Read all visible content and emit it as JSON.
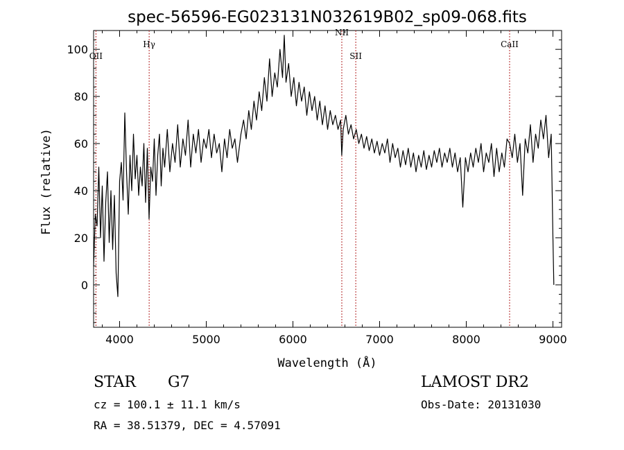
{
  "chart_data": {
    "type": "line",
    "title": "spec-56596-EG023131N032619B02_sp09-068.fits",
    "xlabel": "Wavelength (Å)",
    "ylabel": "Flux (relative)",
    "xlim": [
      3700,
      9100
    ],
    "ylim": [
      -18,
      108
    ],
    "x_ticks": [
      4000,
      5000,
      6000,
      7000,
      8000,
      9000
    ],
    "y_ticks": [
      0,
      20,
      40,
      60,
      80,
      100
    ],
    "grid": false,
    "series": [
      {
        "points": [
          [
            3700,
            8
          ],
          [
            3720,
            30
          ],
          [
            3740,
            25
          ],
          [
            3760,
            50
          ],
          [
            3780,
            20
          ],
          [
            3800,
            42
          ],
          [
            3820,
            10
          ],
          [
            3840,
            35
          ],
          [
            3860,
            48
          ],
          [
            3880,
            18
          ],
          [
            3900,
            40
          ],
          [
            3920,
            15
          ],
          [
            3940,
            38
          ],
          [
            3960,
            5
          ],
          [
            3980,
            -5
          ],
          [
            4000,
            44
          ],
          [
            4020,
            52
          ],
          [
            4040,
            36
          ],
          [
            4060,
            73
          ],
          [
            4080,
            48
          ],
          [
            4100,
            30
          ],
          [
            4120,
            55
          ],
          [
            4140,
            40
          ],
          [
            4160,
            64
          ],
          [
            4180,
            45
          ],
          [
            4200,
            55
          ],
          [
            4220,
            38
          ],
          [
            4240,
            50
          ],
          [
            4260,
            42
          ],
          [
            4280,
            60
          ],
          [
            4300,
            35
          ],
          [
            4320,
            58
          ],
          [
            4340,
            28
          ],
          [
            4360,
            50
          ],
          [
            4380,
            44
          ],
          [
            4400,
            62
          ],
          [
            4420,
            38
          ],
          [
            4440,
            55
          ],
          [
            4460,
            64
          ],
          [
            4480,
            42
          ],
          [
            4500,
            58
          ],
          [
            4520,
            50
          ],
          [
            4550,
            66
          ],
          [
            4580,
            48
          ],
          [
            4610,
            60
          ],
          [
            4640,
            52
          ],
          [
            4670,
            68
          ],
          [
            4700,
            50
          ],
          [
            4730,
            62
          ],
          [
            4760,
            55
          ],
          [
            4790,
            70
          ],
          [
            4820,
            50
          ],
          [
            4850,
            64
          ],
          [
            4880,
            56
          ],
          [
            4910,
            66
          ],
          [
            4940,
            52
          ],
          [
            4970,
            62
          ],
          [
            5000,
            58
          ],
          [
            5030,
            66
          ],
          [
            5060,
            54
          ],
          [
            5090,
            64
          ],
          [
            5120,
            56
          ],
          [
            5150,
            60
          ],
          [
            5180,
            48
          ],
          [
            5210,
            62
          ],
          [
            5240,
            54
          ],
          [
            5270,
            66
          ],
          [
            5300,
            58
          ],
          [
            5330,
            62
          ],
          [
            5360,
            52
          ],
          [
            5400,
            64
          ],
          [
            5430,
            70
          ],
          [
            5460,
            62
          ],
          [
            5490,
            74
          ],
          [
            5520,
            66
          ],
          [
            5550,
            78
          ],
          [
            5580,
            70
          ],
          [
            5610,
            82
          ],
          [
            5640,
            74
          ],
          [
            5670,
            88
          ],
          [
            5700,
            78
          ],
          [
            5730,
            96
          ],
          [
            5760,
            80
          ],
          [
            5790,
            90
          ],
          [
            5820,
            84
          ],
          [
            5850,
            100
          ],
          [
            5880,
            88
          ],
          [
            5900,
            106
          ],
          [
            5920,
            86
          ],
          [
            5950,
            94
          ],
          [
            5980,
            80
          ],
          [
            6010,
            88
          ],
          [
            6040,
            76
          ],
          [
            6070,
            86
          ],
          [
            6100,
            78
          ],
          [
            6130,
            84
          ],
          [
            6160,
            72
          ],
          [
            6190,
            82
          ],
          [
            6220,
            74
          ],
          [
            6250,
            80
          ],
          [
            6280,
            70
          ],
          [
            6310,
            78
          ],
          [
            6340,
            68
          ],
          [
            6370,
            76
          ],
          [
            6400,
            66
          ],
          [
            6430,
            74
          ],
          [
            6460,
            68
          ],
          [
            6490,
            72
          ],
          [
            6520,
            66
          ],
          [
            6550,
            70
          ],
          [
            6563,
            55
          ],
          [
            6580,
            66
          ],
          [
            6610,
            72
          ],
          [
            6640,
            64
          ],
          [
            6670,
            68
          ],
          [
            6700,
            62
          ],
          [
            6730,
            66
          ],
          [
            6760,
            60
          ],
          [
            6790,
            64
          ],
          [
            6820,
            58
          ],
          [
            6850,
            63
          ],
          [
            6880,
            57
          ],
          [
            6910,
            62
          ],
          [
            6940,
            56
          ],
          [
            6970,
            61
          ],
          [
            7000,
            55
          ],
          [
            7030,
            60
          ],
          [
            7060,
            56
          ],
          [
            7090,
            62
          ],
          [
            7120,
            52
          ],
          [
            7150,
            60
          ],
          [
            7180,
            54
          ],
          [
            7210,
            58
          ],
          [
            7240,
            50
          ],
          [
            7270,
            57
          ],
          [
            7300,
            51
          ],
          [
            7330,
            58
          ],
          [
            7360,
            50
          ],
          [
            7390,
            56
          ],
          [
            7420,
            48
          ],
          [
            7450,
            55
          ],
          [
            7480,
            50
          ],
          [
            7510,
            57
          ],
          [
            7540,
            49
          ],
          [
            7570,
            55
          ],
          [
            7600,
            50
          ],
          [
            7630,
            57
          ],
          [
            7660,
            52
          ],
          [
            7690,
            58
          ],
          [
            7720,
            50
          ],
          [
            7750,
            56
          ],
          [
            7780,
            52
          ],
          [
            7810,
            58
          ],
          [
            7840,
            50
          ],
          [
            7870,
            56
          ],
          [
            7900,
            48
          ],
          [
            7930,
            54
          ],
          [
            7960,
            33
          ],
          [
            7990,
            54
          ],
          [
            8020,
            48
          ],
          [
            8050,
            56
          ],
          [
            8080,
            50
          ],
          [
            8110,
            58
          ],
          [
            8140,
            52
          ],
          [
            8170,
            60
          ],
          [
            8200,
            48
          ],
          [
            8230,
            56
          ],
          [
            8260,
            52
          ],
          [
            8290,
            60
          ],
          [
            8320,
            46
          ],
          [
            8350,
            58
          ],
          [
            8380,
            48
          ],
          [
            8410,
            56
          ],
          [
            8440,
            50
          ],
          [
            8470,
            62
          ],
          [
            8500,
            60
          ],
          [
            8530,
            54
          ],
          [
            8560,
            64
          ],
          [
            8590,
            52
          ],
          [
            8620,
            60
          ],
          [
            8650,
            38
          ],
          [
            8680,
            62
          ],
          [
            8710,
            56
          ],
          [
            8740,
            68
          ],
          [
            8770,
            52
          ],
          [
            8800,
            64
          ],
          [
            8830,
            58
          ],
          [
            8860,
            70
          ],
          [
            8890,
            62
          ],
          [
            8920,
            72
          ],
          [
            8950,
            54
          ],
          [
            8980,
            64
          ],
          [
            9000,
            20
          ],
          [
            9010,
            0
          ]
        ]
      }
    ],
    "lines": [
      {
        "label": "OII",
        "x": 3727,
        "label_y": 96
      },
      {
        "label": "Hγ",
        "x": 4341,
        "label_y": 101
      },
      {
        "label": "NII",
        "x": 6564,
        "label_y": 106
      },
      {
        "label": "SII",
        "x": 6725,
        "label_y": 96
      },
      {
        "label": "CaII",
        "x": 8500,
        "label_y": 101
      }
    ]
  },
  "info": {
    "object_class": "STAR",
    "subclass": "G7",
    "survey": "LAMOST DR2",
    "redshift": "cz = 100.1 ± 11.1 km/s",
    "obs_date": "Obs-Date: 20131030",
    "coords": "RA =  38.51379, DEC =   4.57091"
  },
  "colors": {
    "spectrum": "#000000",
    "line_marker": "#b22222"
  }
}
